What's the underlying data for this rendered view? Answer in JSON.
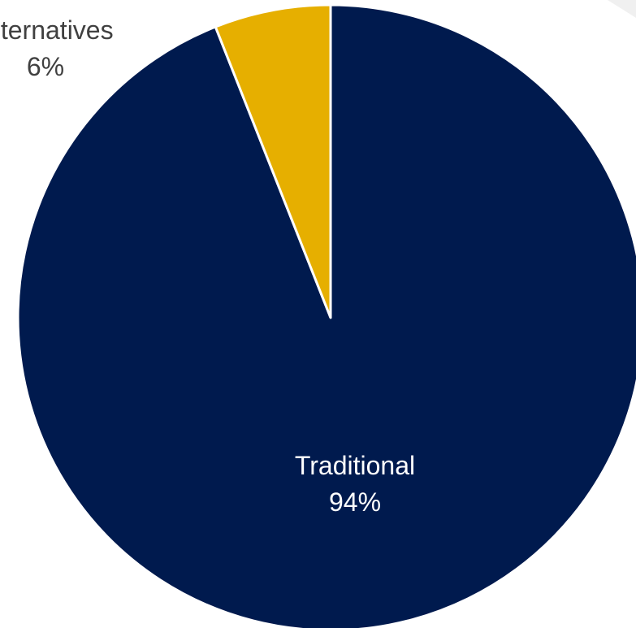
{
  "chart_data": {
    "type": "pie",
    "slices": [
      {
        "label": "Traditional",
        "value": 94,
        "value_label": "94%",
        "color": "#001A4E",
        "label_color": "#ffffff"
      },
      {
        "label": "Alternatives",
        "value": 6,
        "value_label": "6%",
        "color": "#E6AF00",
        "label_color": "#404040"
      }
    ]
  },
  "colors": {
    "background": "#ffffff",
    "slice_border": "#ffffff",
    "corner_decoration": "#F0F0F0"
  }
}
